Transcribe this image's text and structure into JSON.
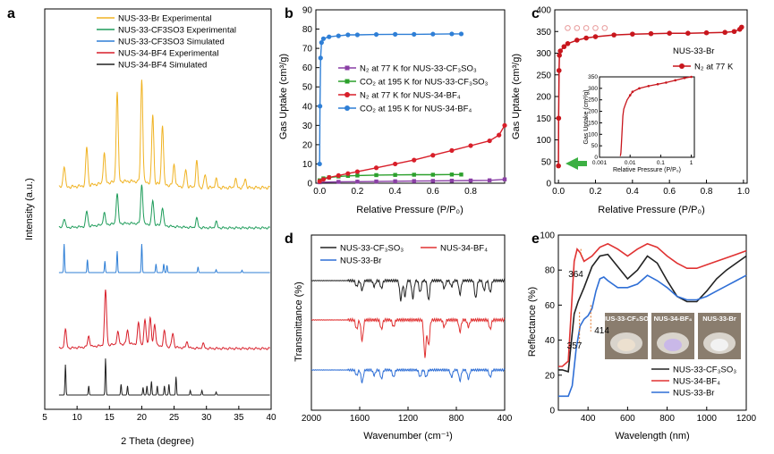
{
  "panels": {
    "a": "a",
    "b": "b",
    "c": "c",
    "d": "d",
    "e": "e"
  },
  "chart_data": [
    {
      "panel": "a",
      "type": "line",
      "xlabel": "2 Theta (degree)",
      "ylabel": "Intensity (a.u.)",
      "xlim": [
        5,
        40
      ],
      "x_ticks": [
        "5",
        "10",
        "15",
        "20",
        "25",
        "30",
        "35",
        "40"
      ],
      "grid": false,
      "legend_placement": "top-right",
      "series": [
        {
          "name": "NUS-33-Br Experimental",
          "color": "#f0b323",
          "peaks": [
            [
              8.0,
              0.5
            ],
            [
              11.5,
              0.9
            ],
            [
              14.2,
              0.7
            ],
            [
              16.2,
              2.1
            ],
            [
              20.0,
              2.4
            ],
            [
              21.7,
              1.6
            ],
            [
              23.2,
              1.4
            ],
            [
              25.0,
              0.5
            ],
            [
              26.8,
              0.4
            ],
            [
              28.5,
              0.6
            ],
            [
              29.8,
              0.3
            ],
            [
              31.5,
              0.2
            ],
            [
              34.5,
              0.2
            ],
            [
              36.0,
              0.2
            ]
          ]
        },
        {
          "name": "NUS-33-CF3SO3 Experimental",
          "color": "#1e9c5a",
          "peaks": [
            [
              8.0,
              0.3
            ],
            [
              11.5,
              0.5
            ],
            [
              14.2,
              0.4
            ],
            [
              16.2,
              1.0
            ],
            [
              20.0,
              1.3
            ],
            [
              21.7,
              0.8
            ],
            [
              23.2,
              0.6
            ],
            [
              28.5,
              0.3
            ],
            [
              31.5,
              0.2
            ]
          ]
        },
        {
          "name": "NUS-33-CF3SO3 Simulated",
          "color": "#2f7fd6",
          "peaks": [
            [
              8.0,
              1.0
            ],
            [
              11.6,
              0.45
            ],
            [
              14.3,
              0.4
            ],
            [
              16.2,
              0.75
            ],
            [
              20.0,
              1.0
            ],
            [
              22.2,
              0.3
            ],
            [
              23.4,
              0.3
            ],
            [
              23.9,
              0.25
            ],
            [
              28.7,
              0.2
            ],
            [
              31.5,
              0.1
            ],
            [
              35.5,
              0.08
            ]
          ]
        },
        {
          "name": "NUS-34-BF4 Experimental",
          "color": "#d81f2a",
          "peaks": [
            [
              8.2,
              0.6
            ],
            [
              11.8,
              0.35
            ],
            [
              14.4,
              1.8
            ],
            [
              16.3,
              0.4
            ],
            [
              17.8,
              0.45
            ],
            [
              19.5,
              0.7
            ],
            [
              20.5,
              0.8
            ],
            [
              21.3,
              0.9
            ],
            [
              22.0,
              0.7
            ],
            [
              23.5,
              0.5
            ],
            [
              24.8,
              0.45
            ],
            [
              27.0,
              0.2
            ],
            [
              29.5,
              0.15
            ]
          ]
        },
        {
          "name": "NUS-34-BF4 Simulated",
          "color": "#222222",
          "peaks": [
            [
              8.2,
              1.0
            ],
            [
              11.8,
              0.3
            ],
            [
              14.4,
              1.2
            ],
            [
              16.8,
              0.35
            ],
            [
              17.8,
              0.3
            ],
            [
              20.2,
              0.25
            ],
            [
              20.8,
              0.3
            ],
            [
              21.5,
              0.45
            ],
            [
              22.4,
              0.3
            ],
            [
              23.5,
              0.3
            ],
            [
              24.2,
              0.35
            ],
            [
              25.3,
              0.6
            ],
            [
              27.5,
              0.15
            ],
            [
              29.3,
              0.15
            ],
            [
              31.5,
              0.1
            ]
          ]
        }
      ]
    },
    {
      "panel": "b",
      "type": "line",
      "xlabel": "Relative Pressure (P/P₀)",
      "ylabel": "Gas Uptake (cm³/g)",
      "xlim": [
        -0.02,
        0.98
      ],
      "ylim": [
        0,
        90
      ],
      "x_ticks": [
        "0.0",
        "0.2",
        "0.4",
        "0.6",
        "0.8"
      ],
      "y_ticks": [
        "0",
        "10",
        "20",
        "30",
        "40",
        "50",
        "60",
        "70",
        "80",
        "90"
      ],
      "grid": false,
      "legend_placement": "middle-right",
      "series": [
        {
          "name": "N₂ at 77 K for NUS-33-CF₃SO₃",
          "color": "#8a3fa5",
          "marker": "square",
          "x": [
            0.0,
            0.1,
            0.2,
            0.3,
            0.4,
            0.5,
            0.6,
            0.7,
            0.8,
            0.9,
            0.98
          ],
          "y": [
            0.5,
            0.7,
            0.8,
            0.9,
            1.0,
            1.1,
            1.2,
            1.3,
            1.4,
            1.5,
            2.0
          ]
        },
        {
          "name": "CO₂ at 195 K for NUS-33-CF₃SO₃",
          "color": "#2ca02c",
          "marker": "square",
          "x": [
            0.0,
            0.02,
            0.05,
            0.1,
            0.15,
            0.2,
            0.3,
            0.4,
            0.5,
            0.6,
            0.7,
            0.75
          ],
          "y": [
            1.5,
            2.5,
            3.0,
            3.5,
            3.8,
            4.0,
            4.2,
            4.3,
            4.4,
            4.4,
            4.5,
            4.5
          ]
        },
        {
          "name": "N₂ at 77 K for NUS-34-BF₄",
          "color": "#d81f2a",
          "marker": "circle",
          "x": [
            0.0,
            0.02,
            0.05,
            0.1,
            0.15,
            0.2,
            0.3,
            0.4,
            0.5,
            0.6,
            0.7,
            0.8,
            0.9,
            0.95,
            0.98
          ],
          "y": [
            1.0,
            2.0,
            3.0,
            4.0,
            5.0,
            6.0,
            8.0,
            10.0,
            12.0,
            14.5,
            17.0,
            19.5,
            22.0,
            25.0,
            30.0
          ]
        },
        {
          "name": "CO₂ at 195 K for NUS-34-BF₄",
          "color": "#2f7fd6",
          "marker": "circle",
          "x": [
            0.0,
            0.002,
            0.005,
            0.01,
            0.02,
            0.05,
            0.1,
            0.15,
            0.2,
            0.3,
            0.4,
            0.5,
            0.6,
            0.7,
            0.75
          ],
          "y": [
            10.0,
            40.0,
            65.0,
            73.0,
            75.0,
            76.0,
            76.5,
            77.0,
            77.0,
            77.2,
            77.3,
            77.3,
            77.4,
            77.5,
            77.5
          ]
        }
      ]
    },
    {
      "panel": "c",
      "type": "line",
      "xlabel": "Relative Pressure (P/P₀)",
      "ylabel": "Gas Uptake (cm³/g)",
      "xlim": [
        -0.02,
        1.02
      ],
      "ylim": [
        0,
        400
      ],
      "x_ticks": [
        "0.0",
        "0.2",
        "0.4",
        "0.6",
        "0.8",
        "1.0"
      ],
      "y_ticks": [
        "0",
        "50",
        "100",
        "150",
        "200",
        "250",
        "300",
        "350",
        "400"
      ],
      "grid": false,
      "sample_label": "NUS-33-Br",
      "series": [
        {
          "name": "N₂ at 77 K",
          "color": "#c8161d",
          "marker": "circle",
          "x": [
            0.0,
            0.001,
            0.003,
            0.005,
            0.01,
            0.03,
            0.05,
            0.1,
            0.15,
            0.2,
            0.3,
            0.4,
            0.5,
            0.6,
            0.7,
            0.8,
            0.9,
            0.95,
            0.98,
            0.99
          ],
          "y": [
            40.0,
            150.0,
            260.0,
            295.0,
            305.0,
            315.0,
            322.0,
            330.0,
            335.0,
            338.0,
            342.0,
            344.0,
            345.0,
            346.0,
            346.0,
            347.0,
            348.0,
            350.0,
            355.0,
            360.0
          ]
        }
      ],
      "inset": {
        "xlabel": "Relative Pressure (P/P₀)",
        "ylabel": "Gas Uptake (cm³/g)",
        "x_ticks": [
          "0.001",
          "0.01",
          "0.1",
          "1"
        ],
        "y_ticks": [
          "0",
          "50",
          "100",
          "150",
          "200",
          "250",
          "300",
          "350"
        ],
        "x_scale": "log"
      }
    },
    {
      "panel": "d",
      "type": "line",
      "xlabel": "Wavenumber (cm⁻¹)",
      "ylabel": "Transmittance (%)",
      "xlim": [
        2000,
        400
      ],
      "x_ticks": [
        "2000",
        "1600",
        "1200",
        "800",
        "400"
      ],
      "grid": false,
      "legend_placement": "top",
      "series": [
        {
          "name": "NUS-33-CF₃SO₃",
          "color": "#222222",
          "dips": [
            [
              1625,
              0.3
            ],
            [
              1580,
              0.5
            ],
            [
              1480,
              0.3
            ],
            [
              1420,
              0.4
            ],
            [
              1260,
              1.0
            ],
            [
              1225,
              0.8
            ],
            [
              1160,
              0.9
            ],
            [
              1100,
              0.6
            ],
            [
              1030,
              1.0
            ],
            [
              900,
              0.4
            ],
            [
              840,
              0.3
            ],
            [
              770,
              0.7
            ],
            [
              640,
              0.9
            ],
            [
              570,
              0.5
            ],
            [
              520,
              0.6
            ]
          ]
        },
        {
          "name": "NUS-34-BF₄",
          "color": "#e03232",
          "dips": [
            [
              1625,
              0.4
            ],
            [
              1580,
              0.9
            ],
            [
              1420,
              0.4
            ],
            [
              1320,
              0.3
            ],
            [
              1060,
              1.6
            ],
            [
              1030,
              1.1
            ],
            [
              900,
              0.3
            ],
            [
              770,
              0.5
            ],
            [
              700,
              0.3
            ],
            [
              520,
              0.4
            ]
          ]
        },
        {
          "name": "NUS-33-Br",
          "color": "#2f6fd6",
          "dips": [
            [
              1625,
              0.3
            ],
            [
              1580,
              0.7
            ],
            [
              1480,
              0.3
            ],
            [
              1420,
              0.5
            ],
            [
              1320,
              0.4
            ],
            [
              1100,
              0.4
            ],
            [
              1050,
              0.4
            ],
            [
              840,
              0.4
            ],
            [
              770,
              0.6
            ],
            [
              700,
              0.5
            ],
            [
              520,
              0.4
            ]
          ]
        }
      ]
    },
    {
      "panel": "e",
      "type": "line",
      "xlabel": "Wavelength (nm)",
      "ylabel": "Reflectance (%)",
      "xlim": [
        250,
        1200
      ],
      "ylim": [
        0,
        100
      ],
      "x_ticks": [
        "400",
        "600",
        "800",
        "1000",
        "1200"
      ],
      "y_ticks": [
        "0",
        "20",
        "40",
        "60",
        "80",
        "100"
      ],
      "grid": false,
      "legend_placement": "bottom-right",
      "annotations": [
        "364",
        "414",
        "357"
      ],
      "series": [
        {
          "name": "NUS-33-CF₃SO₃",
          "color": "#222222",
          "x": [
            250,
            270,
            300,
            330,
            350,
            380,
            420,
            460,
            500,
            550,
            600,
            650,
            700,
            750,
            800,
            850,
            900,
            950,
            1000,
            1050,
            1100,
            1150,
            1200
          ],
          "y": [
            23,
            23,
            22,
            55,
            62,
            70,
            82,
            88,
            89,
            82,
            75,
            80,
            88,
            84,
            74,
            65,
            62,
            62,
            68,
            75,
            80,
            84,
            88
          ]
        },
        {
          "name": "NUS-34-BF₄",
          "color": "#e03232",
          "x": [
            250,
            270,
            300,
            330,
            345,
            360,
            380,
            420,
            460,
            500,
            550,
            600,
            650,
            700,
            750,
            800,
            850,
            900,
            950,
            1000,
            1050,
            1100,
            1150,
            1200
          ],
          "y": [
            25,
            25,
            28,
            85,
            92,
            90,
            85,
            88,
            93,
            95,
            92,
            88,
            92,
            95,
            93,
            88,
            84,
            81,
            81,
            83,
            85,
            87,
            89,
            91
          ]
        },
        {
          "name": "NUS-33-Br",
          "color": "#2f6fd6",
          "x": [
            250,
            270,
            300,
            320,
            340,
            360,
            380,
            400,
            420,
            440,
            460,
            480,
            500,
            550,
            600,
            650,
            700,
            750,
            800,
            850,
            900,
            950,
            1000,
            1050,
            1100,
            1150,
            1200
          ],
          "y": [
            8,
            8,
            8,
            14,
            35,
            48,
            52,
            54,
            58,
            68,
            75,
            76,
            74,
            70,
            70,
            72,
            77,
            74,
            70,
            65,
            63,
            63,
            65,
            68,
            71,
            74,
            77
          ]
        }
      ],
      "photo_labels": [
        "NUS-33-CF₃SO₃",
        "NUS-34-BF₄",
        "NUS-33-Br"
      ]
    }
  ]
}
